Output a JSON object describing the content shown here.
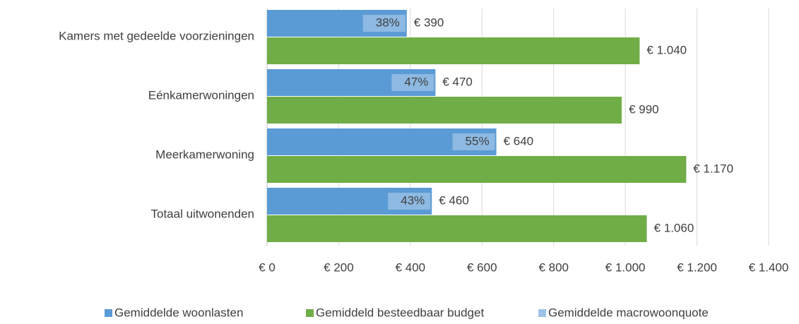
{
  "chart_data": {
    "type": "bar",
    "orientation": "horizontal",
    "categories": [
      "Kamers met gedeelde voorzieningen",
      "Eénkamerwoningen",
      "Meerkamerwoning",
      "Totaal uitwonenden"
    ],
    "series": [
      {
        "name": "Gemiddelde woonlasten",
        "color": "#5b9bd5",
        "values": [
          390,
          470,
          640,
          460
        ],
        "value_labels": [
          "€ 390",
          "€ 470",
          "€ 640",
          "€ 460"
        ]
      },
      {
        "name": "Gemiddeld besteedbaar budget",
        "color": "#70ad47",
        "values": [
          1040,
          990,
          1170,
          1060
        ],
        "value_labels": [
          "€ 1.040",
          "€ 990",
          "€ 1.170",
          "€ 1.060"
        ]
      },
      {
        "name": "Gemiddelde macrowoonquote",
        "color": "#9dc3e6",
        "values": [
          38,
          47,
          55,
          43
        ],
        "value_labels": [
          "38%",
          "47%",
          "55%",
          "43%"
        ]
      }
    ],
    "xlim": [
      0,
      1400
    ],
    "xticks": [
      {
        "value": 0,
        "label": "€ 0"
      },
      {
        "value": 200,
        "label": "€ 200"
      },
      {
        "value": 400,
        "label": "€ 400"
      },
      {
        "value": 600,
        "label": "€ 600"
      },
      {
        "value": 800,
        "label": "€ 800"
      },
      {
        "value": 1000,
        "label": "€ 1.000"
      },
      {
        "value": 1200,
        "label": "€ 1.200"
      },
      {
        "value": 1400,
        "label": "€ 1.400"
      }
    ],
    "grid": true,
    "legend": "bottom"
  }
}
